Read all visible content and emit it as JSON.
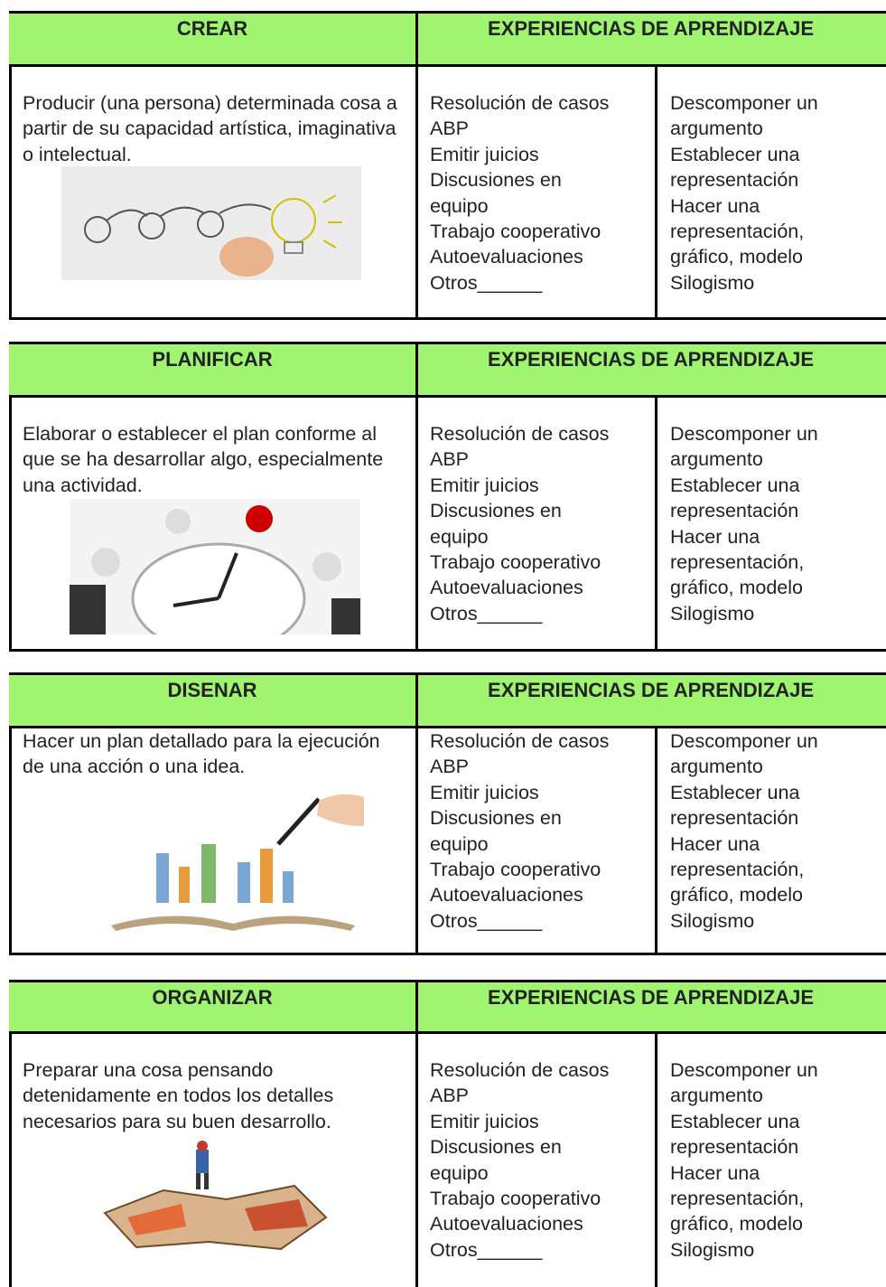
{
  "tables": [
    {
      "verb": "CREAR",
      "header": "EXPERIENCIAS DE APRENDIZAJE",
      "description": "Producir (una persona) determinada cosa a partir de su capacidad artística, imaginativa o intelectual.",
      "experiences": [
        "Resolución de casos",
        "ABP",
        "Emitir juicios",
        "Discusiones en",
        "equipo",
        "Trabajo cooperativo",
        "Autoevaluaciones",
        "Otros______"
      ],
      "actions": [
        "Descomponer un",
        "argumento",
        "Establecer una",
        "representación",
        "Hacer una",
        "representación,",
        "gráfico, modelo",
        "Silogismo"
      ]
    },
    {
      "verb": "PLANIFICAR",
      "header": "EXPERIENCIAS DE APRENDIZAJE",
      "description": "Elaborar o establecer el plan conforme al que se ha desarrollar algo, especialmente una actividad.",
      "experiences": [
        "Resolución de casos",
        "ABP",
        "Emitir juicios",
        "Discusiones en",
        "equipo",
        "Trabajo cooperativo",
        "Autoevaluaciones",
        "Otros______"
      ],
      "actions": [
        "Descomponer un",
        "argumento",
        "Establecer una",
        "representación",
        "Hacer una",
        "representación,",
        "gráfico, modelo",
        "Silogismo"
      ]
    },
    {
      "verb": "DISENAR",
      "header": "EXPERIENCIAS DE APRENDIZAJE",
      "description": "Hacer un plan detallado para la ejecución de una acción o una idea.",
      "experiences": [
        "Resolución de casos",
        "ABP",
        "Emitir juicios",
        "Discusiones en",
        "equipo",
        "Trabajo cooperativo",
        "Autoevaluaciones",
        "Otros______"
      ],
      "actions": [
        "Descomponer un",
        "argumento",
        "Establecer una",
        "representación",
        "Hacer una",
        "representación,",
        "gráfico, modelo",
        "Silogismo"
      ]
    },
    {
      "verb": "ORGANIZAR",
      "header": "EXPERIENCIAS DE APRENDIZAJE",
      "description": "Preparar una cosa pensando detenidamente en todos los detalles necesarios para su buen desarrollo.",
      "experiences": [
        "Resolución de casos",
        "ABP",
        "Emitir juicios",
        "Discusiones en",
        "equipo",
        "Trabajo cooperativo",
        "Autoevaluaciones",
        "Otros______"
      ],
      "actions": [
        "Descomponer un",
        "argumento",
        "Establecer una",
        "representación",
        "Hacer una",
        "representación,",
        "gráfico, modelo",
        "Silogismo"
      ]
    }
  ]
}
